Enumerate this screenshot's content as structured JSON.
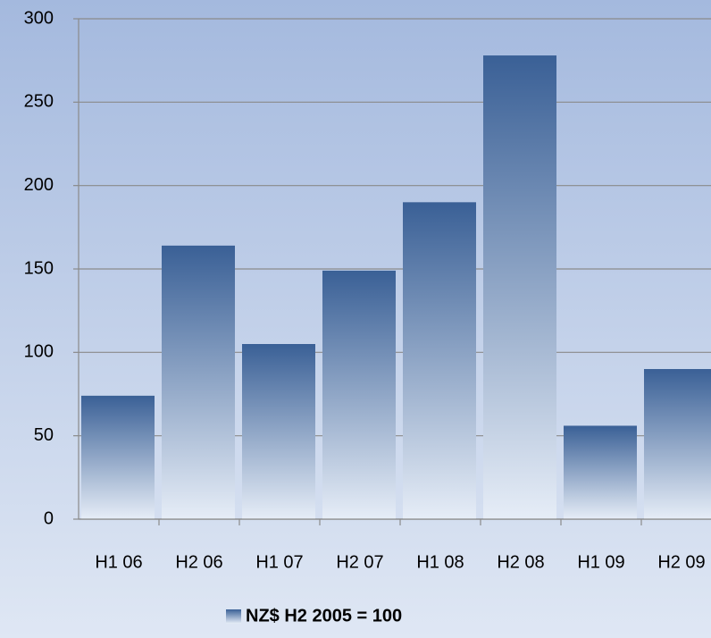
{
  "chart_data": {
    "type": "bar",
    "categories": [
      "H1 06",
      "H2 06",
      "H1 07",
      "H2 07",
      "H1 08",
      "H2 08",
      "H1 09",
      "H2 09"
    ],
    "series": [
      {
        "name": "NZ$ H2 2005 = 100",
        "color": "#3a6096",
        "values": [
          74,
          164,
          105,
          149,
          190,
          278,
          56,
          90
        ]
      }
    ],
    "ylim": [
      0,
      300
    ],
    "yticks": [
      0,
      50,
      100,
      150,
      200,
      250,
      300
    ],
    "grid": true,
    "legend": "bottom"
  }
}
